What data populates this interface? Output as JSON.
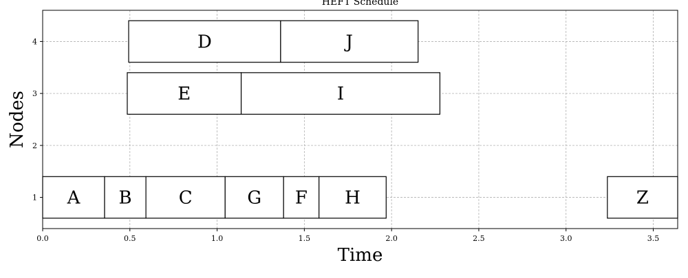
{
  "chart_data": {
    "type": "gantt",
    "title": "HEFT Schedule",
    "xlabel": "Time",
    "ylabel": "Nodes",
    "xlim": [
      0.0,
      3.64
    ],
    "ylim": [
      0.4,
      4.6
    ],
    "grid": true,
    "xticks": [
      "0.0",
      "0.5",
      "1.0",
      "1.5",
      "2.0",
      "2.5",
      "3.0",
      "3.5"
    ],
    "xtick_values": [
      0.0,
      0.5,
      1.0,
      1.5,
      2.0,
      2.5,
      3.0,
      3.5
    ],
    "yticks": [
      "1",
      "2",
      "3",
      "4"
    ],
    "ytick_values": [
      1,
      2,
      3,
      4
    ],
    "tasks": [
      {
        "name": "A",
        "node": 1,
        "start": 0.0,
        "end": 0.355
      },
      {
        "name": "B",
        "node": 1,
        "start": 0.355,
        "end": 0.592
      },
      {
        "name": "C",
        "node": 1,
        "start": 0.592,
        "end": 1.046
      },
      {
        "name": "G",
        "node": 1,
        "start": 1.046,
        "end": 1.381
      },
      {
        "name": "F",
        "node": 1,
        "start": 1.381,
        "end": 1.584
      },
      {
        "name": "H",
        "node": 1,
        "start": 1.584,
        "end": 1.969
      },
      {
        "name": "Z",
        "node": 1,
        "start": 3.237,
        "end": 3.64
      },
      {
        "name": "E",
        "node": 3,
        "start": 0.485,
        "end": 1.138
      },
      {
        "name": "I",
        "node": 3,
        "start": 1.138,
        "end": 2.277
      },
      {
        "name": "D",
        "node": 4,
        "start": 0.493,
        "end": 1.364
      },
      {
        "name": "J",
        "node": 4,
        "start": 1.364,
        "end": 2.152
      }
    ]
  }
}
